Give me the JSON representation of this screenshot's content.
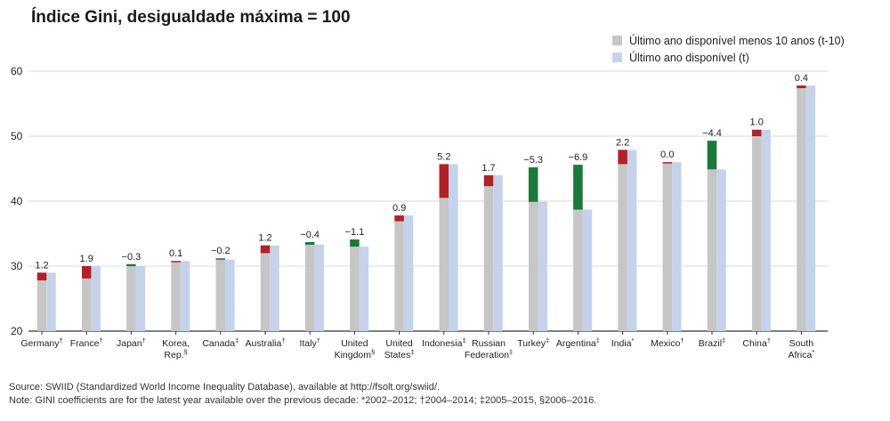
{
  "title": "Índice Gini, desigualdade máxima = 100",
  "legend": {
    "prev_label": "Último ano disponível menos 10 anos (t-10)",
    "curr_label": "Último ano disponível (t)"
  },
  "colors": {
    "prev": "#c6c6c6",
    "curr": "#c5d3ea",
    "increase": "#b32025",
    "decrease": "#1a7a3a",
    "axis": "#333333",
    "grid": "#d8d8d8"
  },
  "chart_data": {
    "type": "bar",
    "yticks": [
      20,
      30,
      40,
      50,
      60
    ],
    "ylim": [
      20,
      63
    ],
    "categories": [
      {
        "name": "Germany",
        "sup": "†",
        "line2": ""
      },
      {
        "name": "France",
        "sup": "†",
        "line2": ""
      },
      {
        "name": "Japan",
        "sup": "†",
        "line2": ""
      },
      {
        "name": "Korea,",
        "sup": "",
        "line2": "Rep.",
        "sup2": "§"
      },
      {
        "name": "Canada",
        "sup": "‡",
        "line2": ""
      },
      {
        "name": "Australia",
        "sup": "†",
        "line2": ""
      },
      {
        "name": "Italy",
        "sup": "†",
        "line2": ""
      },
      {
        "name": "United",
        "sup": "",
        "line2": "Kingdom",
        "sup2": "§"
      },
      {
        "name": "United",
        "sup": "",
        "line2": "States",
        "sup2": "‡"
      },
      {
        "name": "Indonesia",
        "sup": "‡",
        "line2": ""
      },
      {
        "name": "Russian",
        "sup": "",
        "line2": "Federation",
        "sup2": "‡"
      },
      {
        "name": "Turkey",
        "sup": "‡",
        "line2": ""
      },
      {
        "name": "Argentina",
        "sup": "‡",
        "line2": ""
      },
      {
        "name": "India",
        "sup": "*",
        "line2": ""
      },
      {
        "name": "Mexico",
        "sup": "†",
        "line2": ""
      },
      {
        "name": "Brazil",
        "sup": "‡",
        "line2": ""
      },
      {
        "name": "China",
        "sup": "†",
        "line2": ""
      },
      {
        "name": "South",
        "sup": "",
        "line2": "Africa",
        "sup2": "*"
      }
    ],
    "series": [
      {
        "name": "Último ano disponível menos 10 anos (t-10)",
        "values": [
          27.8,
          28.1,
          30.3,
          30.7,
          31.2,
          32.0,
          33.7,
          34.1,
          36.9,
          40.5,
          42.3,
          45.2,
          45.6,
          45.7,
          46.0,
          49.3,
          50.0,
          57.4
        ]
      },
      {
        "name": "Último ano disponível (t)",
        "values": [
          29.0,
          30.0,
          30.0,
          30.8,
          31.0,
          33.2,
          33.3,
          33.0,
          37.8,
          45.7,
          44.0,
          39.9,
          38.7,
          47.9,
          46.0,
          44.9,
          51.0,
          57.8
        ]
      }
    ],
    "change_labels": [
      "1.2",
      "1.9",
      "−0.3",
      "0.1",
      "−0.2",
      "1.2",
      "−0.4",
      "−1.1",
      "0.9",
      "5.2",
      "1.7",
      "−5.3",
      "−6.9",
      "2.2",
      "0.0",
      "−4.4",
      "1.0",
      "0.4"
    ]
  },
  "notes": {
    "source": "Source: SWIID (Standardized World Income Inequality Database), available at http://fsolt.org/swiid/.",
    "note": "Note: GINI coefficients are for the latest year available over the previous decade: *2002–2012; †2004–2014; ‡2005–2015, §2006–2016."
  }
}
